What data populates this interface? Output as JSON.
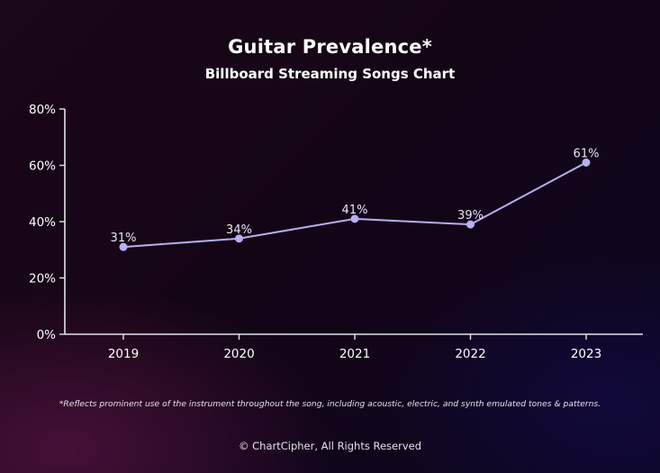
{
  "chart_data": {
    "type": "line",
    "title": "Guitar Prevalence*",
    "subtitle": "Billboard Streaming Songs Chart",
    "categories": [
      "2019",
      "2020",
      "2021",
      "2022",
      "2023"
    ],
    "values": [
      31,
      34,
      41,
      39,
      61
    ],
    "data_labels": [
      "31%",
      "34%",
      "41%",
      "39%",
      "61%"
    ],
    "y_ticks": [
      0,
      20,
      40,
      60,
      80
    ],
    "y_tick_labels": [
      "0%",
      "20%",
      "40%",
      "60%",
      "80%"
    ],
    "ylim": [
      0,
      80
    ],
    "xlabel": "",
    "ylabel": "",
    "grid": false,
    "legend": "none"
  },
  "footnote": "*Reflects prominent use of the instrument throughout the song, including acoustic, electric, and synth emulated tones & patterns.",
  "copyright": "© ChartCipher, All Rights Reserved",
  "colors": {
    "line": "#b8aef2",
    "axis": "#e8e0ec",
    "text": "#ffffff"
  }
}
